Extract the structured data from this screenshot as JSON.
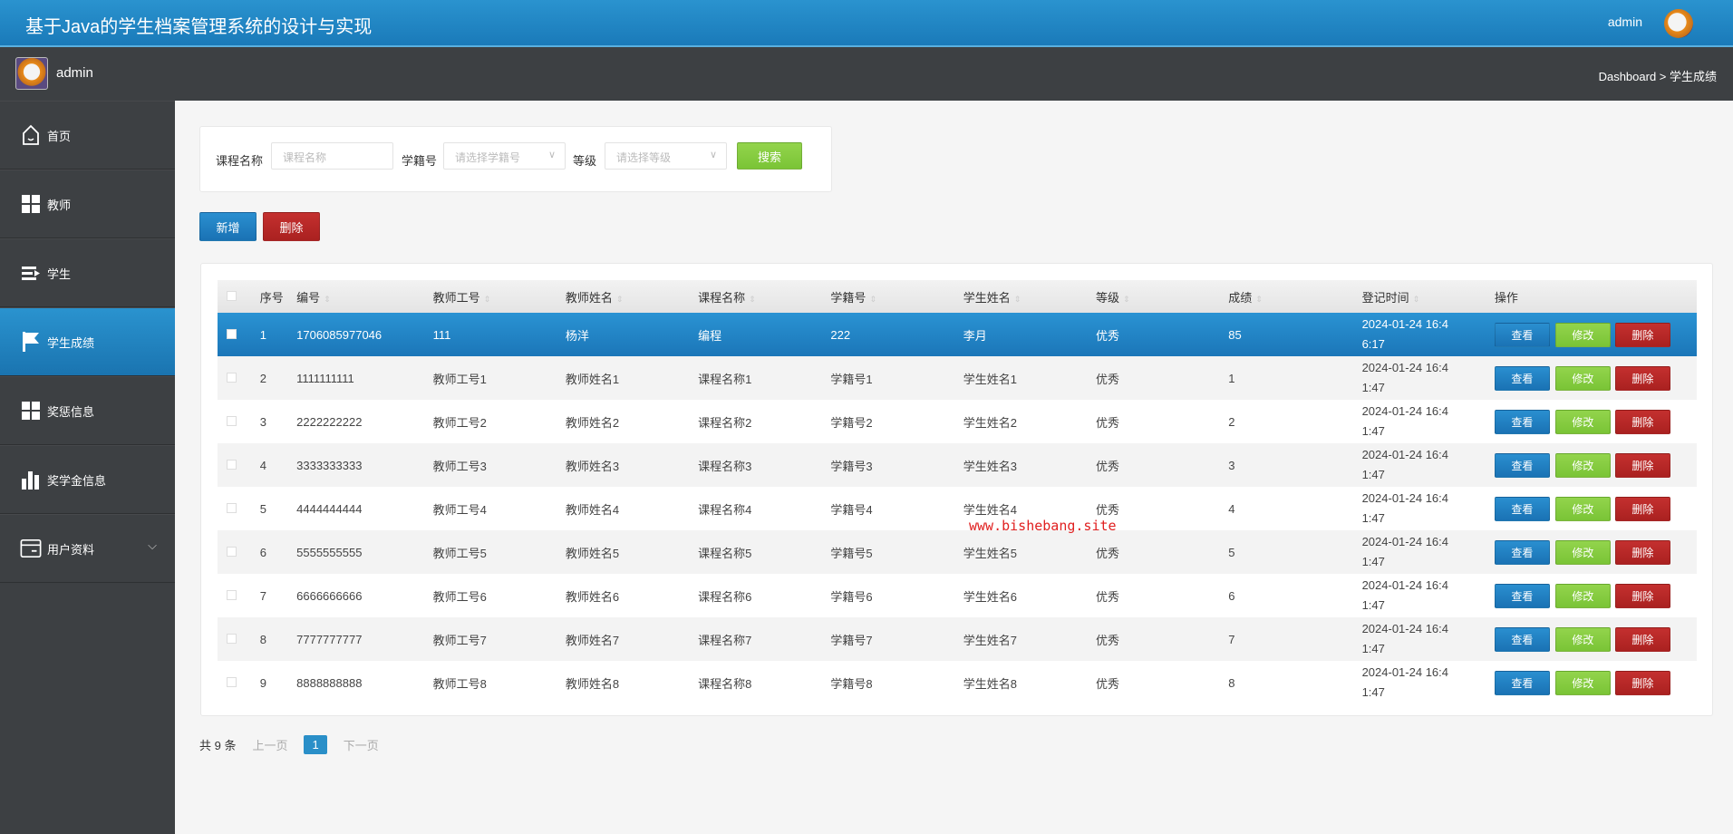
{
  "header": {
    "title": "基于Java的学生档案管理系统的设计与实现",
    "user": "admin"
  },
  "subbar": {
    "user": "admin",
    "breadcrumb": "Dashboard > 学生成绩"
  },
  "sidebar": {
    "items": [
      {
        "label": "首页",
        "icon": "home-icon"
      },
      {
        "label": "教师",
        "icon": "grid-icon"
      },
      {
        "label": "学生",
        "icon": "list-icon"
      },
      {
        "label": "学生成绩",
        "icon": "flag-icon",
        "active": true
      },
      {
        "label": "奖惩信息",
        "icon": "grid-icon"
      },
      {
        "label": "奖学金信息",
        "icon": "bar-chart-icon"
      },
      {
        "label": "用户资料",
        "icon": "card-icon",
        "expandable": true
      }
    ]
  },
  "search": {
    "course_label": "课程名称",
    "course_placeholder": "课程名称",
    "stuno_label": "学籍号",
    "stuno_placeholder": "请选择学籍号",
    "grade_label": "等级",
    "grade_placeholder": "请选择等级",
    "search_button": "搜索"
  },
  "actions": {
    "add": "新增",
    "delete": "删除"
  },
  "table": {
    "columns": [
      "序号",
      "编号",
      "教师工号",
      "教师姓名",
      "课程名称",
      "学籍号",
      "学生姓名",
      "等级",
      "成绩",
      "登记时间",
      "操作"
    ],
    "row_buttons": {
      "view": "查看",
      "edit": "修改",
      "delete": "删除"
    },
    "rows": [
      [
        "1",
        "1706085977046",
        "111",
        "杨洋",
        "编程",
        "222",
        "李月",
        "优秀",
        "85",
        "2024-01-24 16:46:17"
      ],
      [
        "2",
        "1111111111",
        "教师工号1",
        "教师姓名1",
        "课程名称1",
        "学籍号1",
        "学生姓名1",
        "优秀",
        "1",
        "2024-01-24 16:41:47"
      ],
      [
        "3",
        "2222222222",
        "教师工号2",
        "教师姓名2",
        "课程名称2",
        "学籍号2",
        "学生姓名2",
        "优秀",
        "2",
        "2024-01-24 16:41:47"
      ],
      [
        "4",
        "3333333333",
        "教师工号3",
        "教师姓名3",
        "课程名称3",
        "学籍号3",
        "学生姓名3",
        "优秀",
        "3",
        "2024-01-24 16:41:47"
      ],
      [
        "5",
        "4444444444",
        "教师工号4",
        "教师姓名4",
        "课程名称4",
        "学籍号4",
        "学生姓名4",
        "优秀",
        "4",
        "2024-01-24 16:41:47"
      ],
      [
        "6",
        "5555555555",
        "教师工号5",
        "教师姓名5",
        "课程名称5",
        "学籍号5",
        "学生姓名5",
        "优秀",
        "5",
        "2024-01-24 16:41:47"
      ],
      [
        "7",
        "6666666666",
        "教师工号6",
        "教师姓名6",
        "课程名称6",
        "学籍号6",
        "学生姓名6",
        "优秀",
        "6",
        "2024-01-24 16:41:47"
      ],
      [
        "8",
        "7777777777",
        "教师工号7",
        "教师姓名7",
        "课程名称7",
        "学籍号7",
        "学生姓名7",
        "优秀",
        "7",
        "2024-01-24 16:41:47"
      ],
      [
        "9",
        "8888888888",
        "教师工号8",
        "教师姓名8",
        "课程名称8",
        "学籍号8",
        "学生姓名8",
        "优秀",
        "8",
        "2024-01-24 16:41:47"
      ]
    ],
    "selected_row": 0
  },
  "watermark": "www.bishebang.site",
  "pagination": {
    "total": "共 9 条",
    "prev": "上一页",
    "current": "1",
    "next": "下一页"
  },
  "colors": {
    "primary": "#1f86c6",
    "success": "#86cc40",
    "danger": "#b82726",
    "sidebar": "#3d4043"
  }
}
